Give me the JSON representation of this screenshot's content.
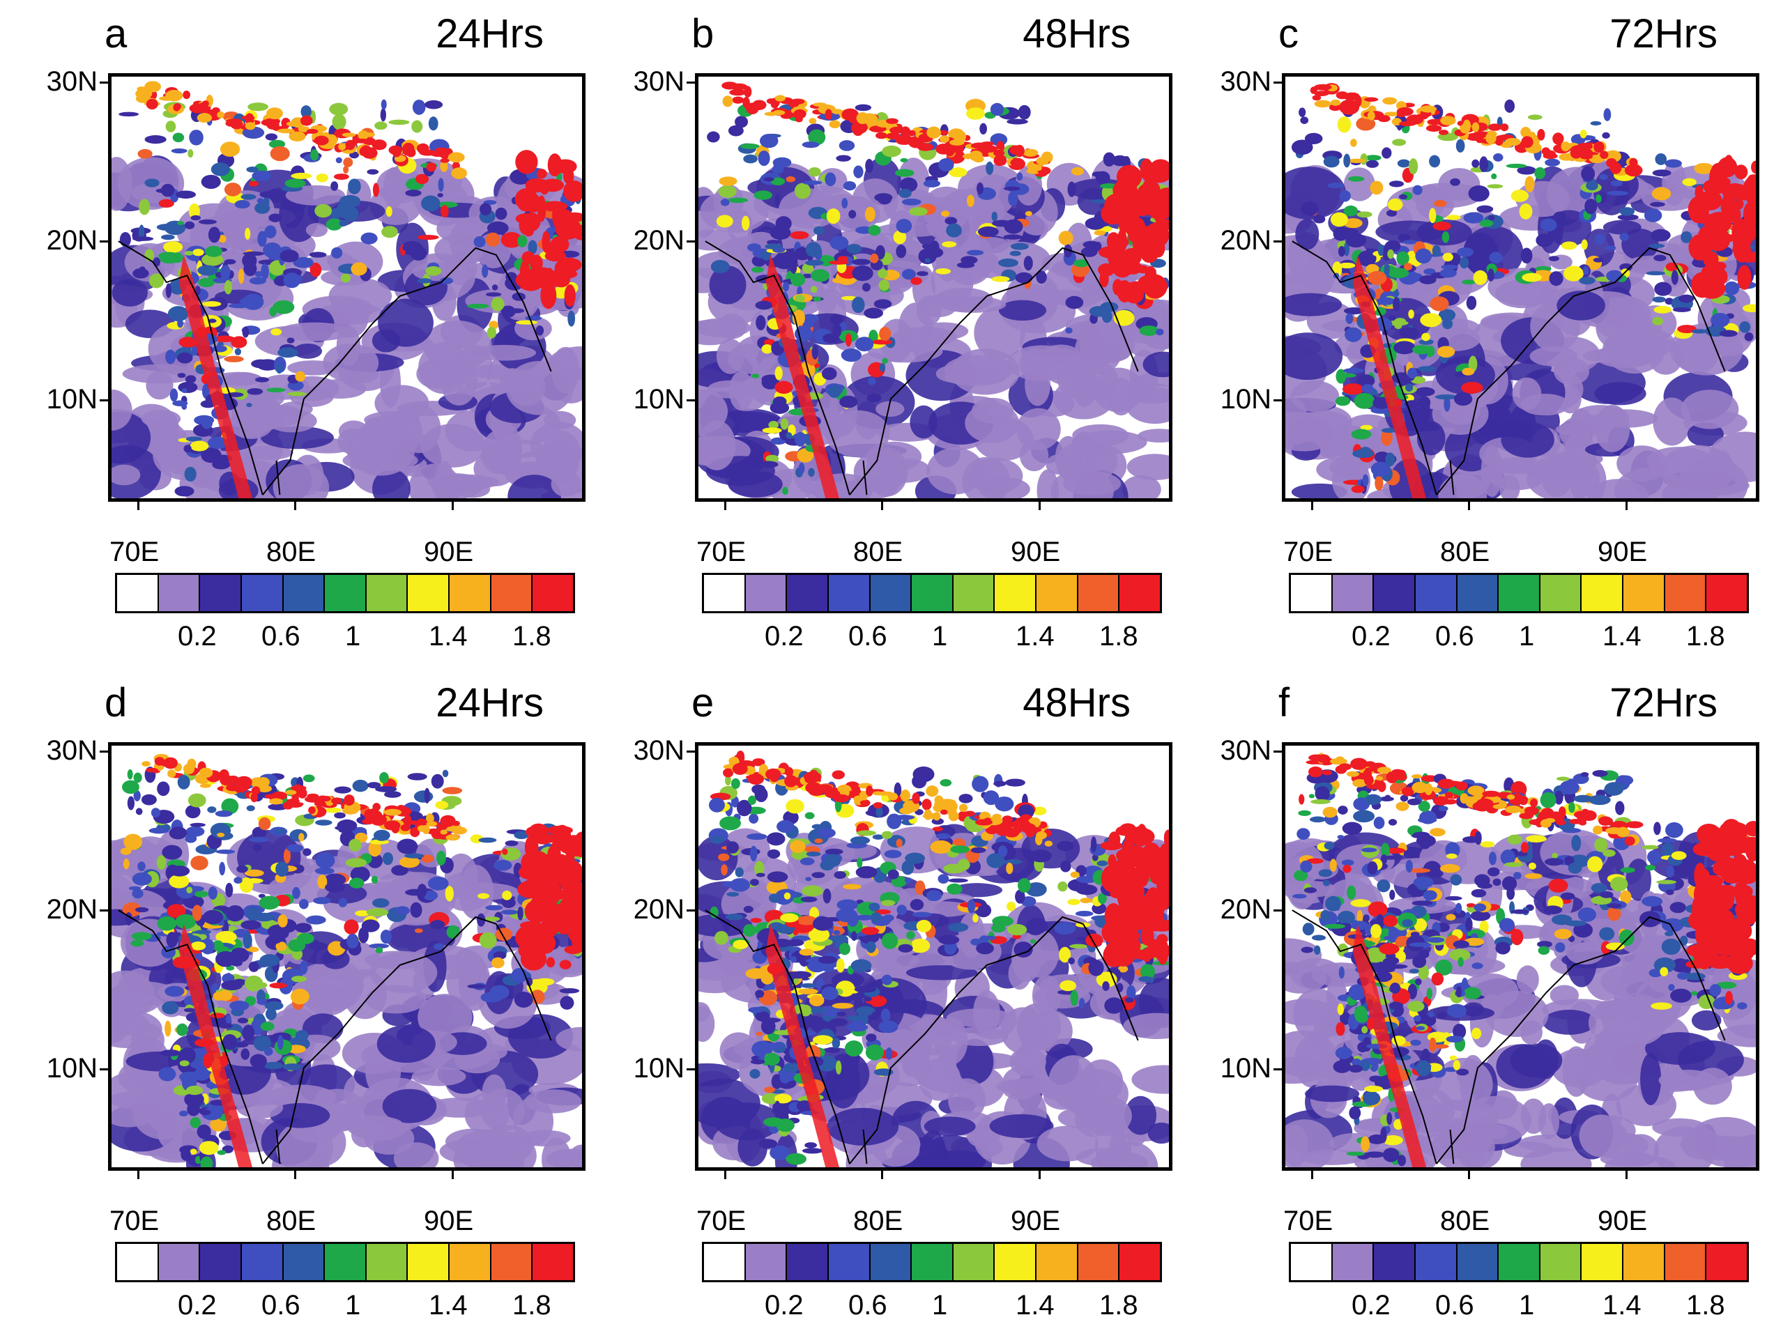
{
  "panels": [
    {
      "label": "a",
      "title": "24Hrs",
      "seed": 11,
      "intensity": 0.55
    },
    {
      "label": "b",
      "title": "48Hrs",
      "seed": 23,
      "intensity": 0.6
    },
    {
      "label": "c",
      "title": "72Hrs",
      "seed": 37,
      "intensity": 0.62
    },
    {
      "label": "d",
      "title": "24Hrs",
      "seed": 41,
      "intensity": 0.9
    },
    {
      "label": "e",
      "title": "48Hrs",
      "seed": 53,
      "intensity": 0.95
    },
    {
      "label": "f",
      "title": "72Hrs",
      "seed": 67,
      "intensity": 1.0
    }
  ],
  "lat_labels": [
    "30N",
    "20N",
    "10N"
  ],
  "lon_labels": [
    "70E",
    "80E",
    "90E"
  ],
  "colorbar": {
    "colors": [
      "#ffffff",
      "#9a7fc6",
      "#3b2c9f",
      "#3f4fbf",
      "#2e5aa8",
      "#1ea84a",
      "#8cc83c",
      "#f7ef1c",
      "#f8b11e",
      "#f0602a",
      "#ee1c24"
    ],
    "labels": [
      "0.2",
      "0.6",
      "1",
      "1.4",
      "1.8"
    ]
  }
}
